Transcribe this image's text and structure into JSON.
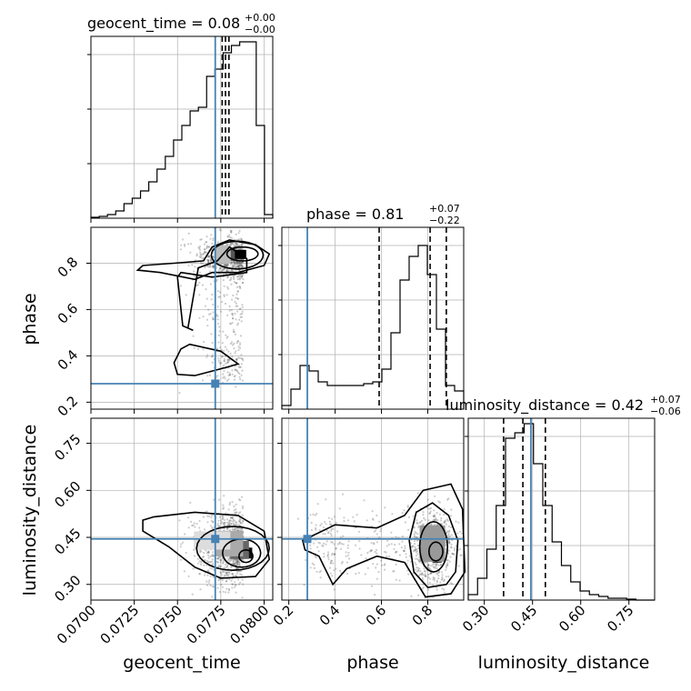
{
  "chart_data": {
    "type": "corner",
    "parameters": [
      "geocent_time",
      "phase",
      "luminosity_distance"
    ],
    "truths": {
      "geocent_time": 0.07718,
      "phase": 0.28,
      "luminosity_distance": 0.445
    },
    "colors": {
      "truth": "#4682b4",
      "hist": "#000000",
      "grid": "#b0b0b0",
      "scatter": "#555555"
    },
    "titles": {
      "geocent_time": {
        "prefix": "geocent_time = 0.08",
        "upper": "+0.00",
        "lower": "−0.00"
      },
      "phase": {
        "prefix": "phase = 0.81",
        "upper": "+0.07",
        "lower": "−0.22"
      },
      "luminosity_distance": {
        "prefix": "luminosity_distance = 0.42",
        "upper": "+0.07",
        "lower": "−0.06"
      }
    },
    "axis_labels": {
      "geocent_time": "geocent_time",
      "phase": "phase",
      "luminosity_distance": "luminosity_distance"
    },
    "ticks": {
      "geocent_time": {
        "values": [
          0.07,
          0.0725,
          0.075,
          0.0775,
          0.08
        ],
        "labels": [
          "0.0700",
          "0.0725",
          "0.0750",
          "0.0775",
          "0.0800"
        ]
      },
      "phase": {
        "values": [
          0.2,
          0.4,
          0.6,
          0.8
        ],
        "labels": [
          "0.2",
          "0.4",
          "0.6",
          "0.8"
        ]
      },
      "luminosity_distance": {
        "values": [
          0.3,
          0.45,
          0.6,
          0.75
        ],
        "labels": [
          "0.30",
          "0.45",
          "0.60",
          "0.75"
        ]
      }
    },
    "ranges": {
      "geocent_time": [
        0.07,
        0.0805
      ],
      "phase": [
        0.17,
        0.955
      ],
      "luminosity_distance": [
        0.25,
        0.83
      ]
    },
    "quantiles": {
      "geocent_time": [
        0.07758,
        0.07777,
        0.07797
      ],
      "phase": [
        0.59,
        0.81,
        0.88
      ],
      "luminosity_distance": [
        0.36,
        0.42,
        0.49
      ]
    },
    "histograms": {
      "geocent_time": [
        0.005,
        0.01,
        0.02,
        0.04,
        0.08,
        0.11,
        0.15,
        0.2,
        0.27,
        0.34,
        0.43,
        0.51,
        0.59,
        0.61,
        0.78,
        0.82,
        0.91,
        0.95,
        0.97,
        0.97,
        0.51,
        0.02
      ],
      "phase": [
        0.02,
        0.11,
        0.24,
        0.21,
        0.15,
        0.13,
        0.13,
        0.13,
        0.13,
        0.14,
        0.15,
        0.22,
        0.42,
        0.71,
        0.84,
        0.9,
        0.74,
        0.44,
        0.13,
        0.1
      ],
      "luminosity_distance": [
        0.03,
        0.12,
        0.28,
        0.52,
        0.89,
        0.92,
        0.97,
        0.75,
        0.52,
        0.32,
        0.19,
        0.1,
        0.05,
        0.03,
        0.02,
        0.01,
        0.01,
        0.005,
        0.0,
        0.0
      ]
    },
    "legend": "none",
    "grid": true
  }
}
